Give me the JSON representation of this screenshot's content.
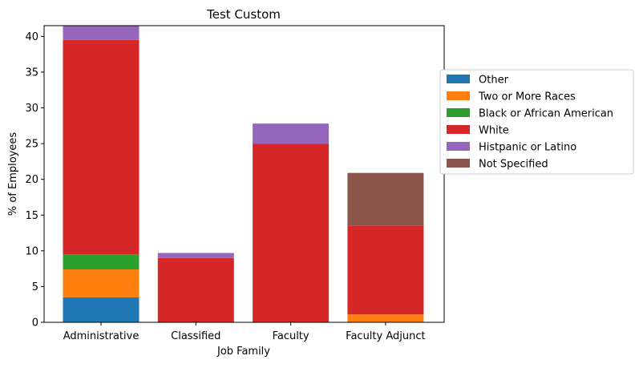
{
  "chart_data": {
    "type": "bar",
    "stacked": true,
    "title": "Test Custom",
    "xlabel": "Job Family",
    "ylabel": "% of Employees",
    "categories": [
      "Administrative",
      "Classified",
      "Faculty",
      "Faculty Adjunct"
    ],
    "ylim": [
      0,
      41.5
    ],
    "yticks": [
      0,
      5,
      10,
      15,
      20,
      25,
      30,
      35,
      40
    ],
    "grid": false,
    "legend_position": "right-outside",
    "series": [
      {
        "name": "Other",
        "color": "#1f77b4",
        "values": [
          3.5,
          0,
          0,
          0
        ]
      },
      {
        "name": "Two or More Races",
        "color": "#ff7f0e",
        "values": [
          3.9,
          0,
          0,
          1.1
        ]
      },
      {
        "name": "Black or African American",
        "color": "#2ca02c",
        "values": [
          2.1,
          0,
          0,
          0
        ]
      },
      {
        "name": "White",
        "color": "#d62728",
        "values": [
          30.0,
          9.0,
          25.0,
          12.4
        ]
      },
      {
        "name": "Histpanic or Latino",
        "color": "#9467bd",
        "values": [
          2.0,
          0.7,
          2.8,
          0
        ]
      },
      {
        "name": "Not Specified",
        "color": "#8c564b",
        "values": [
          0,
          0,
          0,
          7.4
        ]
      }
    ]
  }
}
